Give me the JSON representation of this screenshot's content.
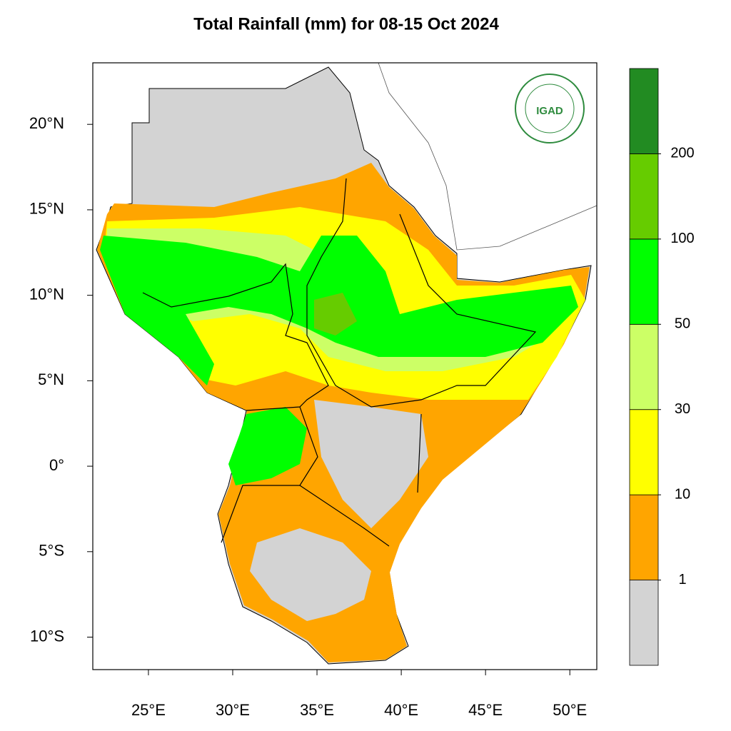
{
  "title": "Total Rainfall (mm) for 08-15 Oct 2024",
  "logo": "IGAD",
  "map": {
    "xlim": [
      21.7,
      51.6
    ],
    "ylim": [
      -11.9,
      23.6
    ],
    "xticks": [
      {
        "value": 25,
        "label": "25°E"
      },
      {
        "value": 30,
        "label": "30°E"
      },
      {
        "value": 35,
        "label": "35°E"
      },
      {
        "value": 40,
        "label": "40°E"
      },
      {
        "value": 45,
        "label": "45°E"
      },
      {
        "value": 50,
        "label": "50°E"
      }
    ],
    "yticks": [
      {
        "value": 20,
        "label": "20°N"
      },
      {
        "value": 15,
        "label": "15°N"
      },
      {
        "value": 10,
        "label": "10°N"
      },
      {
        "value": 5,
        "label": "5°N"
      },
      {
        "value": 0,
        "label": "0°"
      },
      {
        "value": -5,
        "label": "5°S"
      },
      {
        "value": -10,
        "label": "10°S"
      }
    ]
  },
  "legend": {
    "levels": [
      1,
      10,
      30,
      50,
      100,
      200
    ],
    "colors": [
      "#d3d3d3",
      "#ffa500",
      "#ffff00",
      "#ccff66",
      "#00ff00",
      "#66cc00",
      "#228b22"
    ]
  }
}
